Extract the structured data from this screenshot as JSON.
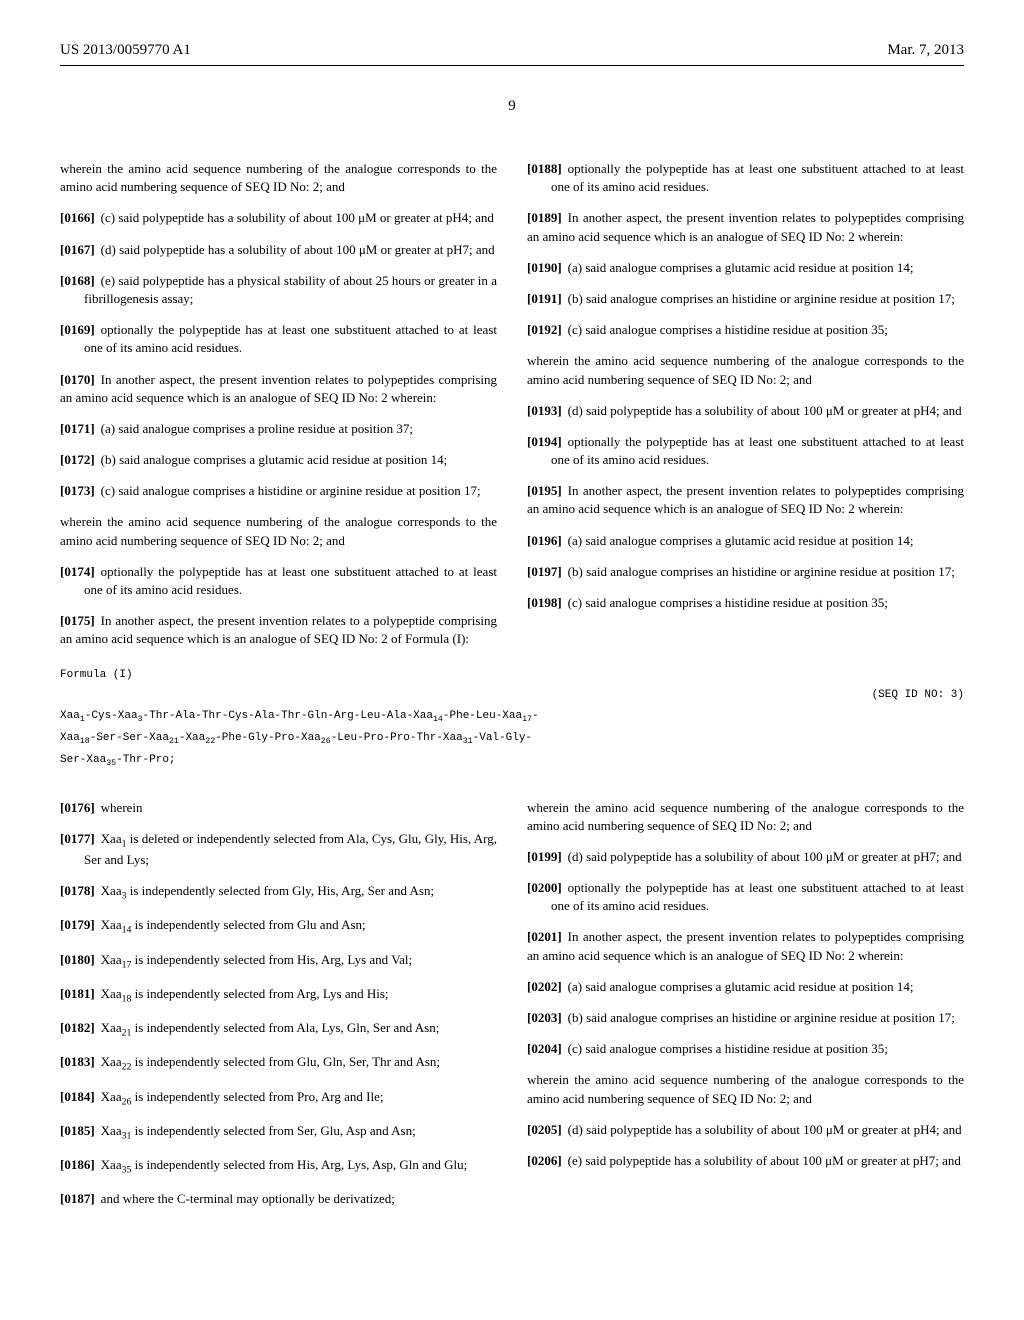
{
  "header": {
    "left": "US 2013/0059770 A1",
    "right": "Mar. 7, 2013"
  },
  "page_number": "9",
  "left_col": {
    "p0": "wherein the amino acid sequence numbering of the analogue corresponds to the amino acid numbering sequence of SEQ ID No: 2; and",
    "p0166": "(c) said polypeptide has a solubility of about 100 μM or greater at pH4; and",
    "p0167": "(d) said polypeptide has a solubility of about 100 μM or greater at pH7; and",
    "p0168": "(e) said polypeptide has a physical stability of about 25 hours or greater in a fibrillogenesis assay;",
    "p0169": "optionally the polypeptide has at least one substituent attached to at least one of its amino acid residues.",
    "p0170": "In another aspect, the present invention relates to polypeptides comprising an amino acid sequence which is an analogue of SEQ ID No: 2 wherein:",
    "p0171": "(a) said analogue comprises a proline residue at position 37;",
    "p0172": "(b) said analogue comprises a glutamic acid residue at position 14;",
    "p0173": "(c) said analogue comprises a histidine or arginine residue at position 17;",
    "p0173b": "wherein the amino acid sequence numbering of the analogue corresponds to the amino acid numbering sequence of SEQ ID No: 2; and",
    "p0174": "optionally the polypeptide has at least one substituent attached to at least one of its amino acid residues.",
    "p0175": "In another aspect, the present invention relates to a polypeptide comprising an amino acid sequence which is an analogue of SEQ ID No: 2 of Formula (I):",
    "p0176": "wherein",
    "p0177_a": "Xaa",
    "p0177_sub": "1",
    "p0177_b": " is deleted or independently selected from Ala, Cys, Glu, Gly, His, Arg, Ser and Lys;",
    "p0178_a": "Xaa",
    "p0178_sub": "3",
    "p0178_b": " is independently selected from Gly, His, Arg, Ser and Asn;",
    "p0179_a": "Xaa",
    "p0179_sub": "14",
    "p0179_b": " is independently selected from Glu and Asn;",
    "p0180_a": "Xaa",
    "p0180_sub": "17",
    "p0180_b": " is independently selected from His, Arg, Lys and Val;",
    "p0181_a": "Xaa",
    "p0181_sub": "18",
    "p0181_b": " is independently selected from Arg, Lys and His;",
    "p0182_a": "Xaa",
    "p0182_sub": "21",
    "p0182_b": " is independently selected from Ala, Lys, Gln, Ser and Asn;",
    "p0183_a": "Xaa",
    "p0183_sub": "22",
    "p0183_b": " is independently selected from Glu, Gln, Ser, Thr and Asn;",
    "p0184_a": "Xaa",
    "p0184_sub": "26",
    "p0184_b": " is independently selected from Pro, Arg and Ile;",
    "p0185_a": "Xaa",
    "p0185_sub": "31",
    "p0185_b": " is independently selected from Ser, Glu, Asp and Asn;",
    "p0186_a": "Xaa",
    "p0186_sub": "35",
    "p0186_b": " is independently selected from His, Arg, Lys, Asp, Gln and Glu;",
    "p0187": "and where the C-terminal may optionally be derivatized;"
  },
  "right_col": {
    "p0188": "optionally the polypeptide has at least one substituent attached to at least one of its amino acid residues.",
    "p0189": "In another aspect, the present invention relates to polypeptides comprising an amino acid sequence which is an analogue of SEQ ID No: 2 wherein:",
    "p0190": "(a) said analogue comprises a glutamic acid residue at position 14;",
    "p0191": "(b) said analogue comprises an histidine or arginine residue at position 17;",
    "p0192": "(c) said analogue comprises a histidine residue at position 35;",
    "p0192b": "wherein the amino acid sequence numbering of the analogue corresponds to the amino acid numbering sequence of SEQ ID No: 2; and",
    "p0193": "(d) said polypeptide has a solubility of about 100 μM or greater at pH4; and",
    "p0194": "optionally the polypeptide has at least one substituent attached to at least one of its amino acid residues.",
    "p0195": "In another aspect, the present invention relates to polypeptides comprising an amino acid sequence which is an analogue of SEQ ID No: 2 wherein:",
    "p0196": "(a) said analogue comprises a glutamic acid residue at position 14;",
    "p0197": "(b) said analogue comprises an histidine or arginine residue at position 17;",
    "p0198": "(c) said analogue comprises a histidine residue at position 35;",
    "p0198b": "wherein the amino acid sequence numbering of the analogue corresponds to the amino acid numbering sequence of SEQ ID No: 2; and",
    "p0199": "(d) said polypeptide has a solubility of about 100 μM or greater at pH7; and",
    "p0200": "optionally the polypeptide has at least one substituent attached to at least one of its amino acid residues.",
    "p0201": "In another aspect, the present invention relates to polypeptides comprising an amino acid sequence which is an analogue of SEQ ID No: 2 wherein:",
    "p0202": "(a) said analogue comprises a glutamic acid residue at position 14;",
    "p0203": "(b) said analogue comprises an histidine or arginine residue at position 17;",
    "p0204": "(c) said analogue comprises a histidine residue at position 35;",
    "p0204b": "wherein the amino acid sequence numbering of the analogue corresponds to the amino acid numbering sequence of SEQ ID No: 2; and",
    "p0205": "(d) said polypeptide has a solubility of about 100 μM or greater at pH4; and",
    "p0206": "(e) said polypeptide has a solubility of about 100 μM or greater at pH7; and"
  },
  "formula": {
    "label": "Formula (I)",
    "seq_id": "(SEQ ID NO: 3)"
  }
}
